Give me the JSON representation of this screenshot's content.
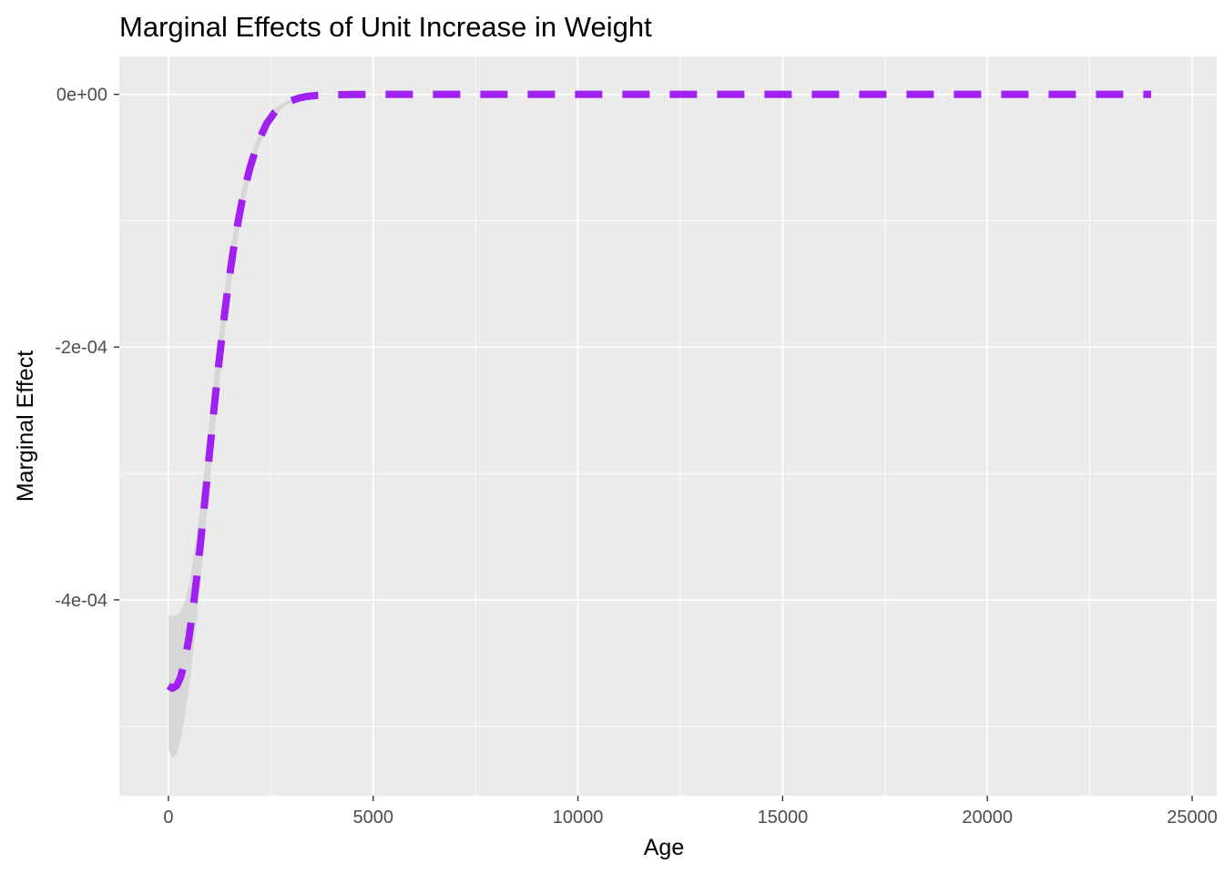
{
  "chart_data": {
    "type": "line",
    "title": "Marginal Effects of Unit Increase in Weight",
    "xlabel": "Age",
    "ylabel": "Marginal Effect",
    "xlim": [
      -1200,
      25600
    ],
    "ylim": [
      -0.000555,
      3e-05
    ],
    "x_ticks": [
      {
        "value": 0,
        "label": "0"
      },
      {
        "value": 5000,
        "label": "5000"
      },
      {
        "value": 10000,
        "label": "10000"
      },
      {
        "value": 15000,
        "label": "15000"
      },
      {
        "value": 20000,
        "label": "20000"
      },
      {
        "value": 25000,
        "label": "25000"
      }
    ],
    "y_ticks": [
      {
        "value": 0,
        "label": "0e+00"
      },
      {
        "value": -0.0002,
        "label": "-2e-04"
      },
      {
        "value": -0.0004,
        "label": "-4e-04"
      }
    ],
    "grid": true,
    "legend": "none",
    "colors": {
      "panel": "#ebebeb",
      "grid": "#ffffff",
      "ribbon": "#d3d3d3",
      "line": "#a020f0"
    },
    "series": [
      {
        "style": "dashed",
        "x": [
          0,
          100,
          200,
          300,
          400,
          500,
          600,
          700,
          800,
          900,
          1000,
          1100,
          1200,
          1300,
          1400,
          1500,
          1600,
          1700,
          1800,
          1900,
          2000,
          2200,
          2400,
          2600,
          2800,
          3000,
          3200,
          3400,
          3600,
          3800,
          4000,
          4500,
          5000,
          6000,
          8000,
          10000,
          12000,
          14000,
          16000,
          18000,
          20000,
          22000,
          24000
        ],
        "y": [
          -0.000468,
          -0.00047,
          -0.000468,
          -0.000461,
          -0.000448,
          -0.00043,
          -0.000407,
          -0.00038,
          -0.00035,
          -0.000318,
          -0.000285,
          -0.000253,
          -0.000222,
          -0.000193,
          -0.000166,
          -0.000142,
          -0.00012,
          -0.000101,
          -8.4e-05,
          -7e-05,
          -5.7e-05,
          -3.7e-05,
          -2.3e-05,
          -1.4e-05,
          -8.5e-06,
          -5e-06,
          -2.8e-06,
          -1.6e-06,
          -9e-07,
          -5e-07,
          -3e-07,
          -1e-07,
          0,
          0,
          0,
          0,
          0,
          0,
          0,
          0,
          0,
          0,
          0
        ],
        "lower": [
          -0.000518,
          -0.000525,
          -0.000522,
          -0.000511,
          -0.000493,
          -0.00047,
          -0.000443,
          -0.000412,
          -0.000379,
          -0.000345,
          -0.00031,
          -0.000276,
          -0.000243,
          -0.000212,
          -0.000183,
          -0.000157,
          -0.000133,
          -0.000112,
          -9.4e-05,
          -7.8e-05,
          -6.4e-05,
          -4.2e-05,
          -2.7e-05,
          -1.7e-05,
          -1.05e-05,
          -6.4e-06,
          -3.7e-06,
          -2.1e-06,
          -1.2e-06,
          -7e-07,
          -4e-07,
          -1e-07,
          0,
          0,
          0,
          0,
          0,
          0,
          0,
          0,
          0,
          0,
          0
        ],
        "upper": [
          -0.000412,
          -0.000413,
          -0.000412,
          -0.000409,
          -0.000401,
          -0.000388,
          -0.000369,
          -0.000346,
          -0.00032,
          -0.00029,
          -0.000259,
          -0.000229,
          -0.0002,
          -0.000173,
          -0.000148,
          -0.000126,
          -0.000107,
          -9e-05,
          -7.5e-05,
          -6.2e-05,
          -5e-05,
          -3.2e-05,
          -1.9e-05,
          -1.1e-05,
          -6.6e-06,
          -3.7e-06,
          -2e-06,
          -1.1e-06,
          -6e-07,
          -3e-07,
          -2e-07,
          -1e-07,
          0,
          0,
          0,
          0,
          0,
          0,
          0,
          0,
          0,
          0,
          0
        ]
      }
    ]
  }
}
